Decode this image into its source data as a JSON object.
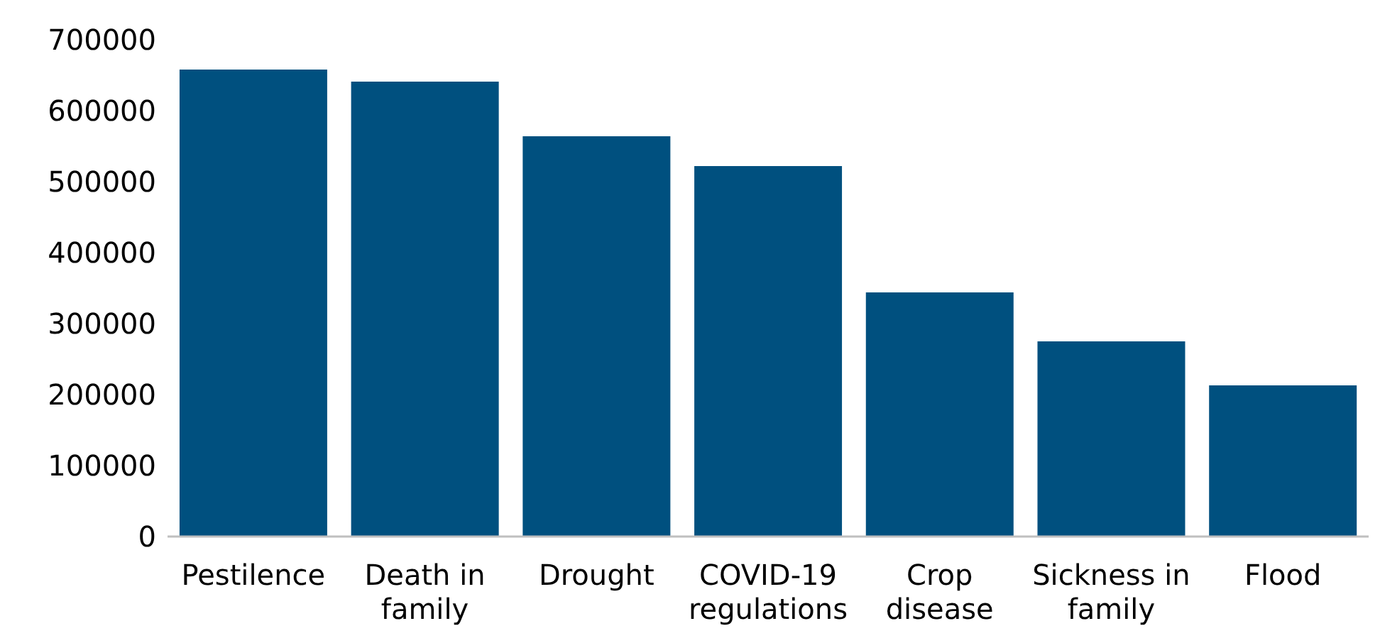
{
  "chart_data": {
    "type": "bar",
    "categories": [
      "Pestilence",
      "Death in family",
      "Drought",
      "COVID-19 regulations",
      "Crop disease",
      "Sickness in family",
      "Flood"
    ],
    "values": [
      658000,
      641000,
      564000,
      522000,
      344000,
      275000,
      213000
    ],
    "color": "#00507f",
    "ylim": [
      0,
      700000
    ],
    "yticks": [
      0,
      100000,
      200000,
      300000,
      400000,
      500000,
      600000,
      700000
    ],
    "grid": false,
    "legend": false
  }
}
